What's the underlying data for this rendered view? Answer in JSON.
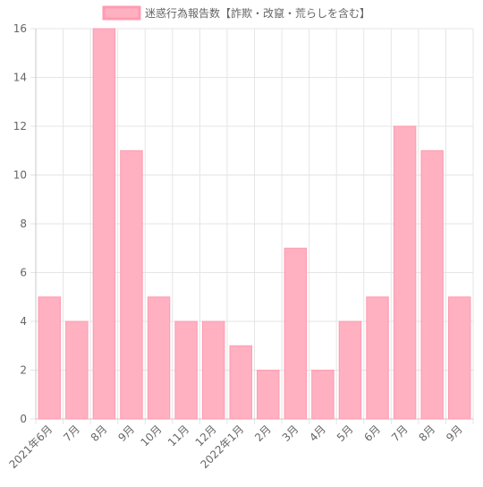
{
  "chart_data": {
    "type": "bar",
    "title": "",
    "xlabel": "",
    "ylabel": "",
    "legend": {
      "position": "top",
      "entries": [
        "迷惑行為報告数【詐欺・改竄・荒らしを含む】"
      ]
    },
    "grid": true,
    "ylim": [
      0,
      16
    ],
    "yticks": [
      0,
      2,
      4,
      6,
      8,
      10,
      12,
      14,
      16
    ],
    "categories": [
      "2021年6月",
      "7月",
      "8月",
      "9月",
      "10月",
      "11月",
      "12月",
      "2022年1月",
      "2月",
      "3月",
      "4月",
      "5月",
      "6月",
      "7月",
      "8月",
      "9月"
    ],
    "series": [
      {
        "name": "迷惑行為報告数【詐欺・改竄・荒らしを含む】",
        "values": [
          5,
          4,
          16,
          11,
          5,
          4,
          4,
          3,
          2,
          7,
          2,
          4,
          5,
          12,
          11,
          5
        ],
        "color": "#ffb0c1",
        "border_color": "#ff9bb0"
      }
    ]
  }
}
